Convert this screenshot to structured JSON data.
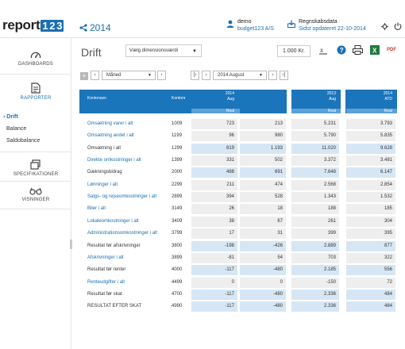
{
  "app": {
    "logo_text": "report",
    "logo_digits": [
      "1",
      "2",
      "3"
    ],
    "year": "2014",
    "user": {
      "name": "demo",
      "company": "budget123 A/S"
    },
    "report": {
      "title": "Regnskabsdata",
      "updated": "Sidst opdateret 22-10-2014"
    }
  },
  "sidebar": {
    "items": [
      {
        "label": "DASHBOARDS",
        "icon": "gauge-icon"
      },
      {
        "label": "RAPPORTER",
        "icon": "document-icon"
      },
      {
        "label": "SPECIFIKATIONER",
        "icon": "layers-icon"
      },
      {
        "label": "VISNINGER",
        "icon": "glasses-icon"
      }
    ],
    "sub_items": [
      "Drift",
      "Balance",
      "Saldobalance"
    ],
    "active_marker": "›"
  },
  "toolbar": {
    "page_title": "Drift",
    "dimension_placeholder": "Vælg dimensionsværdi",
    "unit": "1.000 Kr.",
    "pdf_label": "PDF"
  },
  "period": {
    "type": "Måned",
    "date": "2014 August",
    "expand_symbol": "+"
  },
  "table": {
    "headers": {
      "account_name": "Kontonavn",
      "account_no": "Kontonr",
      "col1": [
        "2014",
        "Aug",
        "Real"
      ],
      "col2": [
        "2013",
        "Aug",
        "Real"
      ],
      "col3": [
        "2014",
        "ATD",
        "Real"
      ]
    },
    "rows": [
      {
        "name": "Omsætning varer i alt",
        "code": "1009",
        "values": [
          "723",
          "213",
          "5.231",
          "3.793"
        ],
        "link": true,
        "shade": "light"
      },
      {
        "name": "Omsætning andet i alt",
        "code": "1199",
        "values": [
          "96",
          "980",
          "5.790",
          "5.835"
        ],
        "link": true,
        "shade": "light"
      },
      {
        "name": "Omsætning i alt",
        "code": "1299",
        "values": [
          "819",
          "1.193",
          "11.020",
          "9.628"
        ],
        "link": false,
        "shade": "blue"
      },
      {
        "name": "Direkte omkostninger i alt",
        "code": "1399",
        "values": [
          "331",
          "502",
          "3.372",
          "3.481"
        ],
        "link": true,
        "shade": "light"
      },
      {
        "name": "Dækningsbidrag",
        "code": "2000",
        "values": [
          "488",
          "691",
          "7.648",
          "6.147"
        ],
        "link": false,
        "shade": "blue"
      },
      {
        "name": "Lønninger i alt",
        "code": "2299",
        "values": [
          "211",
          "474",
          "2.568",
          "2.854"
        ],
        "link": true,
        "shade": "light"
      },
      {
        "name": "Salgs- og rejseomkostninger i alt",
        "code": "2899",
        "values": [
          "394",
          "528",
          "1.343",
          "1.532"
        ],
        "link": true,
        "shade": "light"
      },
      {
        "name": "Biler i alt",
        "code": "3149",
        "values": [
          "26",
          "18",
          "188",
          "185"
        ],
        "link": true,
        "shade": "light"
      },
      {
        "name": "Lokaleomkostninger i alt",
        "code": "3409",
        "values": [
          "38",
          "67",
          "261",
          "304"
        ],
        "link": true,
        "shade": "light"
      },
      {
        "name": "Administrationsomkostninger i alt",
        "code": "3799",
        "values": [
          "17",
          "31",
          "399",
          "395"
        ],
        "link": true,
        "shade": "light"
      },
      {
        "name": "Resultat før afskrivninger",
        "code": "3800",
        "values": [
          "-198",
          "-426",
          "2.889",
          "877"
        ],
        "link": false,
        "shade": "blue"
      },
      {
        "name": "Afskrivninger i alt",
        "code": "3899",
        "values": [
          "-81",
          "54",
          "703",
          "322"
        ],
        "link": true,
        "shade": "light"
      },
      {
        "name": "Resultat før renter",
        "code": "4000",
        "values": [
          "-117",
          "-480",
          "2.185",
          "556"
        ],
        "link": false,
        "shade": "blue"
      },
      {
        "name": "Renteudgifter i alt",
        "code": "4499",
        "values": [
          "0",
          "0",
          "-150",
          "72"
        ],
        "link": true,
        "shade": "light"
      },
      {
        "name": "Resultat før skat",
        "code": "4700",
        "values": [
          "-117",
          "-480",
          "2.336",
          "484"
        ],
        "link": false,
        "shade": "blue"
      },
      {
        "name": "RESULTAT EFTER SKAT",
        "code": "4990",
        "values": [
          "-117",
          "-480",
          "2.336",
          "484"
        ],
        "link": false,
        "shade": "blue"
      }
    ]
  },
  "colors": {
    "accent": "#1a6fb3",
    "header_bg": "#1b75bb",
    "row_light": "#eeeeee",
    "row_blue": "#d6e6f4"
  }
}
